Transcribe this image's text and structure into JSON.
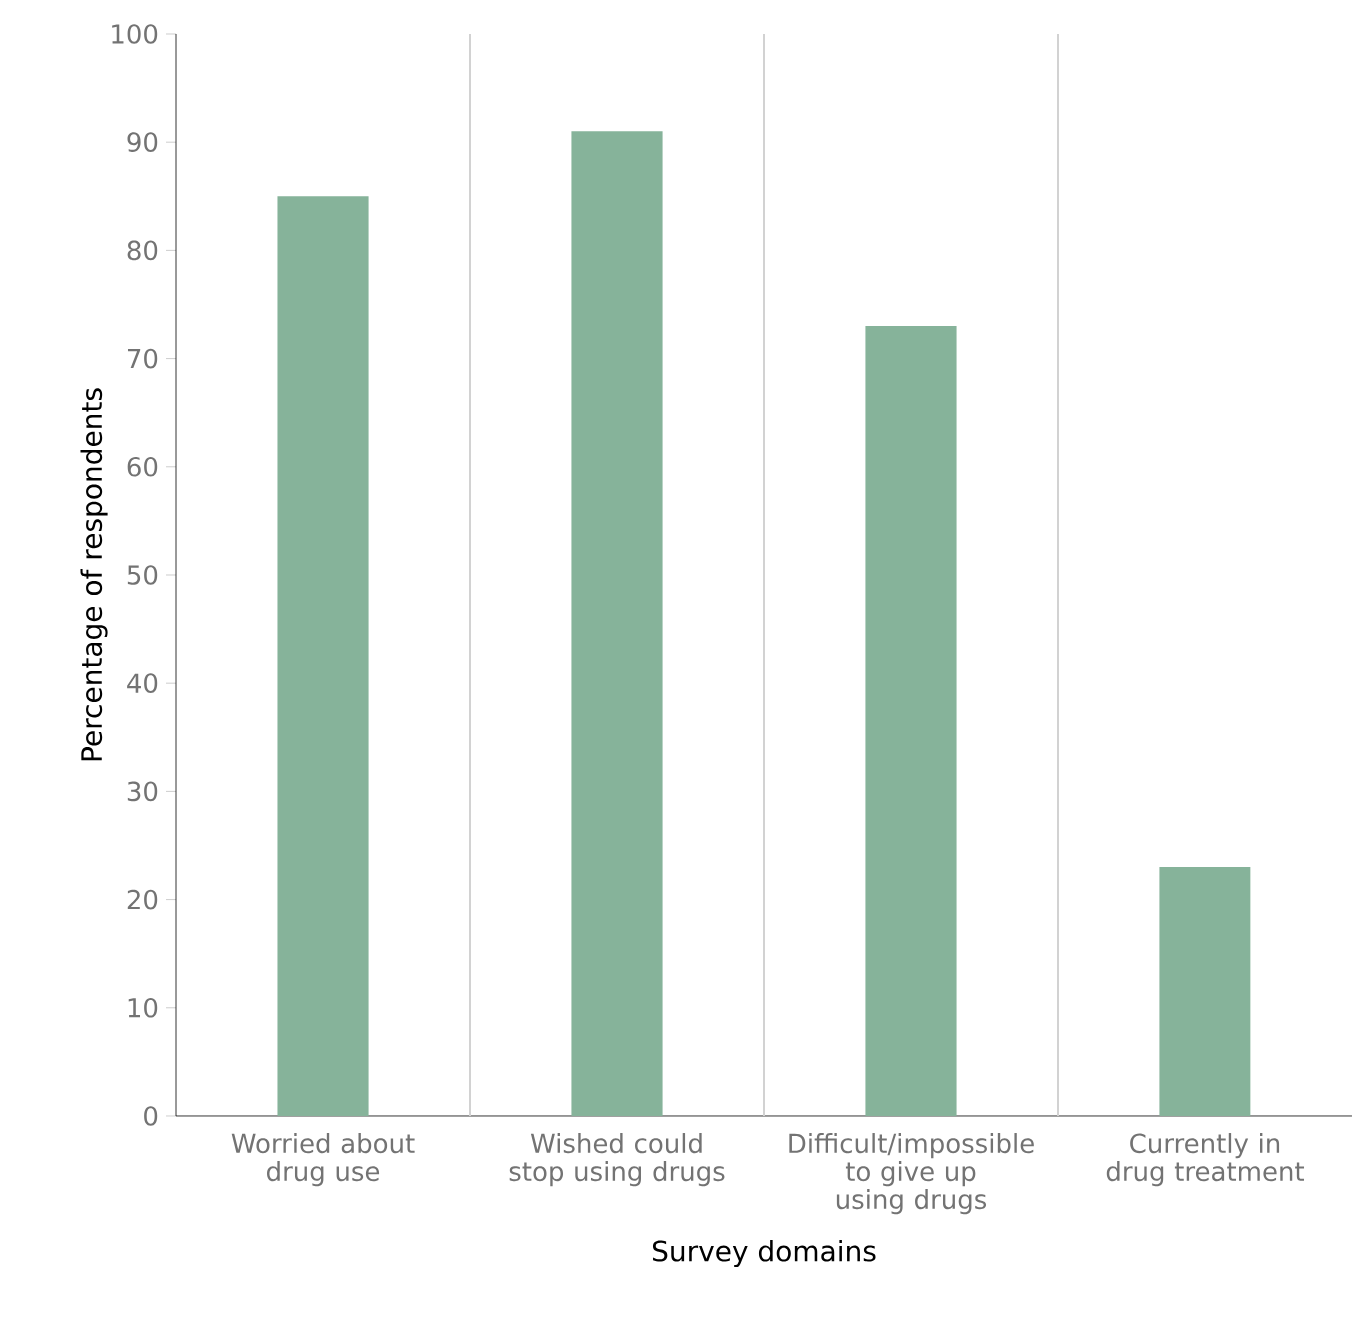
{
  "chart_data": {
    "type": "bar",
    "xlabel": "Survey domains",
    "ylabel": "Percentage of respondents",
    "categories": [
      "Worried about drug use",
      "Wished could stop using drugs",
      "Difficult/impossible to give up using drugs",
      "Currently in drug treatment"
    ],
    "values": [
      85,
      91,
      73,
      23
    ],
    "color": "#86b39a",
    "ylim": [
      0,
      100
    ],
    "yticks": [
      0,
      10,
      20,
      30,
      40,
      50,
      60,
      70,
      80,
      90,
      100
    ],
    "grid": "x"
  }
}
